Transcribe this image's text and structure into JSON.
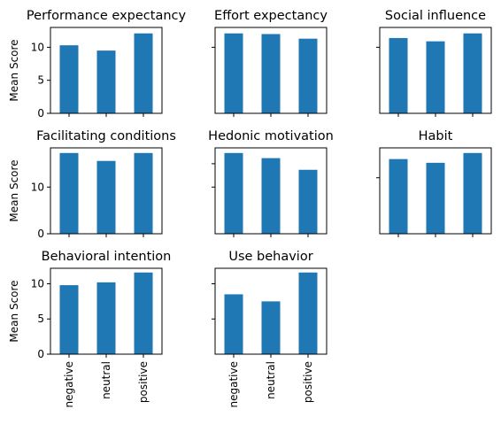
{
  "chart_data": [
    {
      "type": "bar",
      "title": "Performance expectancy",
      "categories": [
        "negative",
        "neutral",
        "positive"
      ],
      "values": [
        10.3,
        9.5,
        12.1
      ],
      "ylabel": "Mean Score",
      "ylim": [
        0,
        13
      ],
      "yticks": [
        0,
        5,
        10
      ],
      "show_ytick_labels": true,
      "show_xtick_labels": false
    },
    {
      "type": "bar",
      "title": "Effort expectancy",
      "categories": [
        "negative",
        "neutral",
        "positive"
      ],
      "values": [
        12.1,
        12.0,
        11.3
      ],
      "ylabel": "",
      "ylim": [
        0,
        13
      ],
      "yticks": [
        10
      ],
      "show_ytick_labels": false,
      "show_xtick_labels": false
    },
    {
      "type": "bar",
      "title": "Social influence",
      "categories": [
        "negative",
        "neutral",
        "positive"
      ],
      "values": [
        11.4,
        10.9,
        12.1
      ],
      "ylabel": "",
      "ylim": [
        0,
        13
      ],
      "yticks": [
        10
      ],
      "show_ytick_labels": false,
      "show_xtick_labels": false
    },
    {
      "type": "bar",
      "title": "Facilitating conditions",
      "categories": [
        "negative",
        "neutral",
        "positive"
      ],
      "values": [
        17.3,
        15.6,
        17.3
      ],
      "ylabel": "Mean Score",
      "ylim": [
        0,
        18.4
      ],
      "yticks": [
        0,
        10
      ],
      "show_ytick_labels": true,
      "show_xtick_labels": false
    },
    {
      "type": "bar",
      "title": "Hedonic motivation",
      "categories": [
        "negative",
        "neutral",
        "positive"
      ],
      "values": [
        17.3,
        16.2,
        13.7
      ],
      "ylabel": "",
      "ylim": [
        0,
        18.4
      ],
      "yticks": [
        10,
        15
      ],
      "show_ytick_labels": false,
      "show_xtick_labels": false
    },
    {
      "type": "bar",
      "title": "Habit",
      "categories": [
        "negative",
        "neutral",
        "positive"
      ],
      "values": [
        16.0,
        15.2,
        17.3
      ],
      "ylabel": "",
      "ylim": [
        0,
        18.4
      ],
      "yticks": [
        12
      ],
      "show_ytick_labels": false,
      "show_xtick_labels": false
    },
    {
      "type": "bar",
      "title": "Behavioral intention",
      "categories": [
        "negative",
        "neutral",
        "positive"
      ],
      "values": [
        9.8,
        10.2,
        11.6
      ],
      "ylabel": "Mean Score",
      "ylim": [
        0,
        12.2
      ],
      "yticks": [
        0,
        5,
        10
      ],
      "show_ytick_labels": true,
      "show_xtick_labels": true
    },
    {
      "type": "bar",
      "title": "Use behavior",
      "categories": [
        "negative",
        "neutral",
        "positive"
      ],
      "values": [
        8.5,
        7.5,
        11.6
      ],
      "ylabel": "",
      "ylim": [
        0,
        12.2
      ],
      "yticks": [
        5,
        10
      ],
      "show_ytick_labels": false,
      "show_xtick_labels": true
    }
  ],
  "colors": {
    "bar": "#1f77b4"
  }
}
